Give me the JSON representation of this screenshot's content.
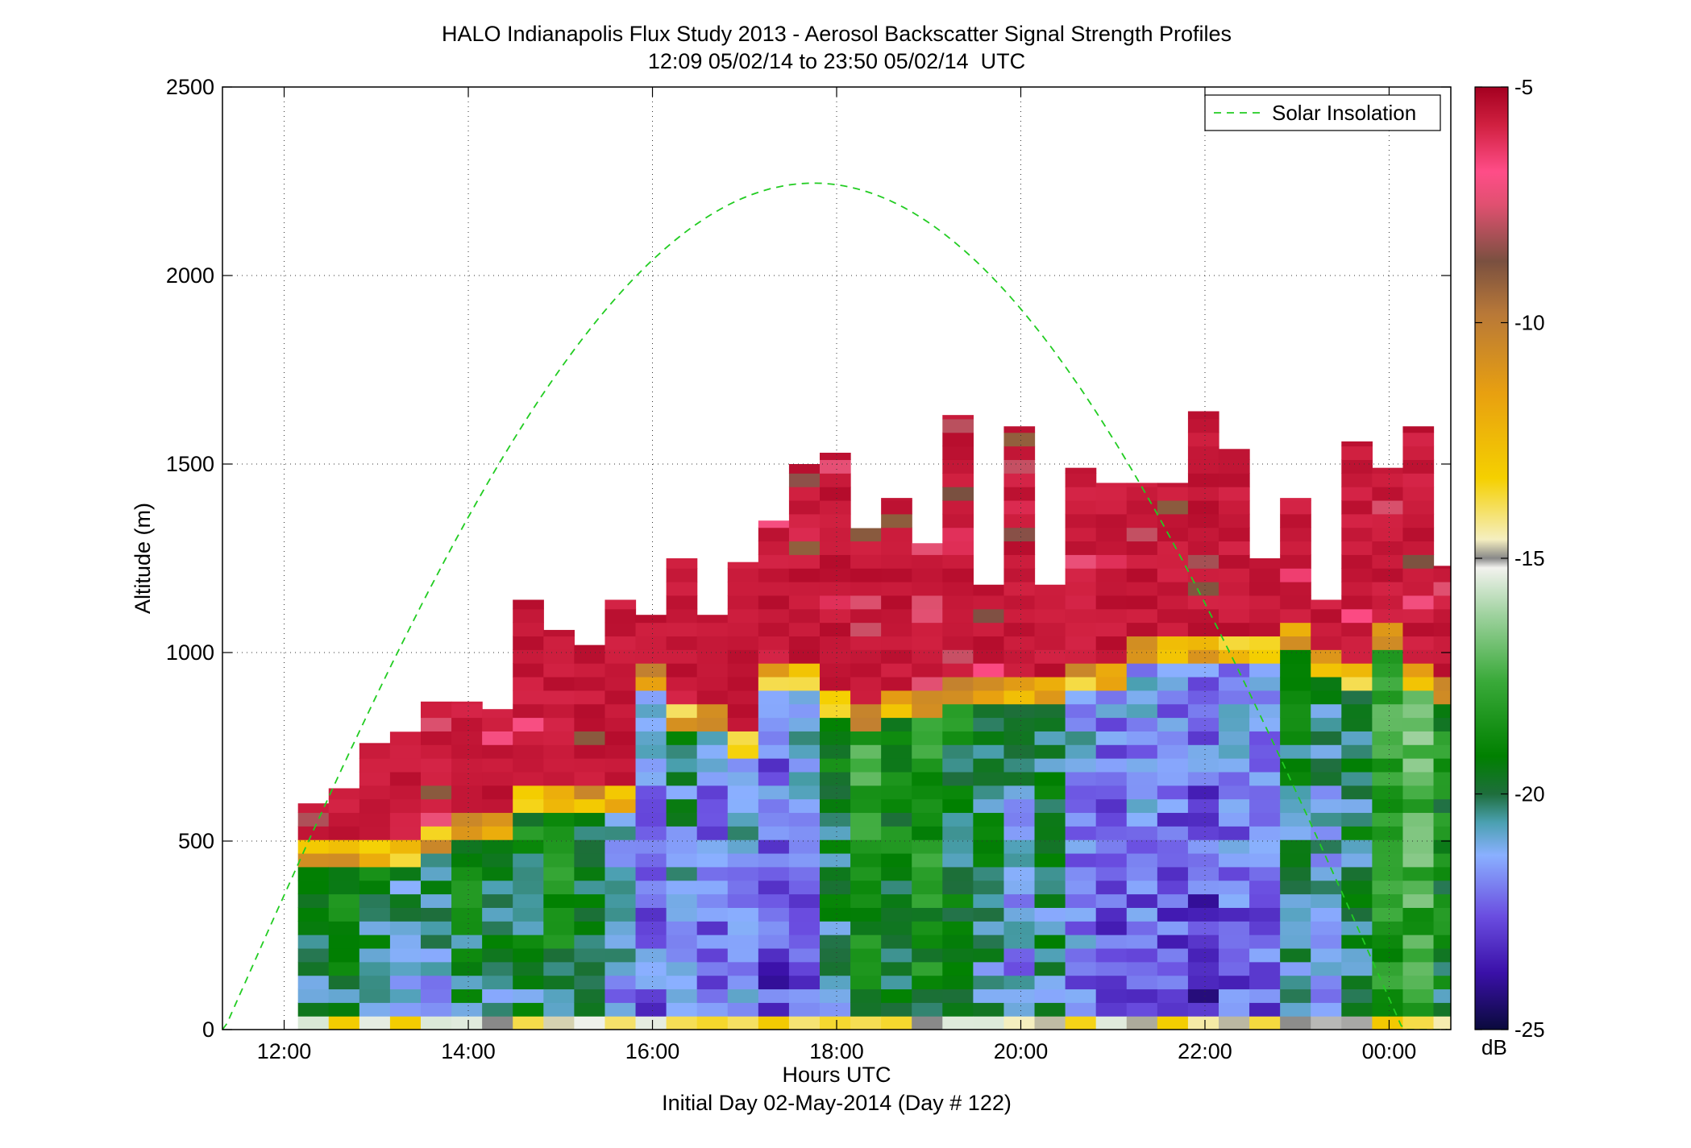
{
  "chart_data": {
    "type": "heatmap",
    "title": "HALO Indianapolis Flux Study 2013 - Aerosol Backscatter Signal Strength Profiles",
    "subtitle": "12:09 05/02/14 to 23:50 05/02/14  UTC",
    "xlabel": "Hours UTC",
    "xlabel2": "Initial Day 02-May-2014 (Day # 122)",
    "ylabel": "Altitude (m)",
    "colorbar_label": "dB",
    "xlim_hours": [
      11.33,
      24.67
    ],
    "ylim": [
      0,
      2500
    ],
    "xticks": [
      {
        "value": 12,
        "label": "12:00"
      },
      {
        "value": 14,
        "label": "14:00"
      },
      {
        "value": 16,
        "label": "16:00"
      },
      {
        "value": 18,
        "label": "18:00"
      },
      {
        "value": 20,
        "label": "20:00"
      },
      {
        "value": 22,
        "label": "22:00"
      },
      {
        "value": 24,
        "label": "00:00"
      }
    ],
    "yticks": [
      {
        "value": 0,
        "label": "0"
      },
      {
        "value": 500,
        "label": "500"
      },
      {
        "value": 1000,
        "label": "1000"
      },
      {
        "value": 1500,
        "label": "1500"
      },
      {
        "value": 2000,
        "label": "2000"
      },
      {
        "value": 2500,
        "label": "2500"
      }
    ],
    "colorbar": {
      "range": [
        -25,
        -5
      ],
      "ticks": [
        {
          "value": -5,
          "label": "-5"
        },
        {
          "value": -10,
          "label": "-10"
        },
        {
          "value": -15,
          "label": "-15"
        },
        {
          "value": -20,
          "label": "-20"
        },
        {
          "value": -25,
          "label": "-25"
        }
      ],
      "stops": [
        {
          "v": -25,
          "c": "#0a0a3c"
        },
        {
          "v": -23.8,
          "c": "#3a10a8"
        },
        {
          "v": -22.6,
          "c": "#6a4de0"
        },
        {
          "v": -21.3,
          "c": "#8ab0ff"
        },
        {
          "v": -20.6,
          "c": "#4aa0b0"
        },
        {
          "v": -20.0,
          "c": "#1e6e3c"
        },
        {
          "v": -19.2,
          "c": "#008000"
        },
        {
          "v": -17.6,
          "c": "#3aaa3a"
        },
        {
          "v": -16.2,
          "c": "#9fd29f"
        },
        {
          "v": -15.2,
          "c": "#f2f2ee"
        },
        {
          "v": -15.0,
          "c": "#888888"
        },
        {
          "v": -14.6,
          "c": "#f5efc0"
        },
        {
          "v": -13.3,
          "c": "#f5d000"
        },
        {
          "v": -11.5,
          "c": "#e8a010"
        },
        {
          "v": -9.8,
          "c": "#b87838"
        },
        {
          "v": -8.7,
          "c": "#7a5040"
        },
        {
          "v": -7.5,
          "c": "#e05070"
        },
        {
          "v": -6.8,
          "c": "#ff4d88"
        },
        {
          "v": -5.8,
          "c": "#d02040"
        },
        {
          "v": -5,
          "c": "#a40020"
        }
      ]
    },
    "series": [
      {
        "name": "Solar Insolation",
        "style": "dashed",
        "color": "#22cc22",
        "note_scale": "plotted against altitude axis",
        "peak_time_hours": 17.75,
        "peak_altitude": 2245,
        "half_width_hours": 6.4
      }
    ],
    "heatmap": {
      "time_start_hours": 12.15,
      "time_bin_hours": 0.3333,
      "altitude_bin_m": 36,
      "altitude_start_m": 36,
      "columns_dB_profile": [
        {
          "top": 600,
          "bl_top": 420,
          "bl": -19.5
        },
        {
          "top": 640,
          "bl_top": 420,
          "bl": -19.0
        },
        {
          "top": 760,
          "bl_top": 420,
          "bl": -19.5
        },
        {
          "top": 790,
          "bl_top": 420,
          "bl": -20.2
        },
        {
          "top": 870,
          "bl_top": 460,
          "bl": -20.0
        },
        {
          "top": 870,
          "bl_top": 480,
          "bl": -19.0
        },
        {
          "top": 850,
          "bl_top": 500,
          "bl": -19.5
        },
        {
          "top": 1140,
          "bl_top": 560,
          "bl": -19.0
        },
        {
          "top": 1060,
          "bl_top": 560,
          "bl": -18.5
        },
        {
          "top": 1020,
          "bl_top": 560,
          "bl": -19.5
        },
        {
          "top": 1140,
          "bl_top": 560,
          "bl": -20.5
        },
        {
          "top": 1100,
          "bl_top": 880,
          "bl": -21.2
        },
        {
          "top": 1250,
          "bl_top": 780,
          "bl": -20.0
        },
        {
          "top": 1100,
          "bl_top": 760,
          "bl": -21.5
        },
        {
          "top": 1240,
          "bl_top": 700,
          "bl": -20.8
        },
        {
          "top": 1350,
          "bl_top": 880,
          "bl": -21.8
        },
        {
          "top": 1500,
          "bl_top": 880,
          "bl": -21.3
        },
        {
          "top": 1530,
          "bl_top": 800,
          "bl": -19.5
        },
        {
          "top": 1330,
          "bl_top": 760,
          "bl": -18.0
        },
        {
          "top": 1410,
          "bl_top": 800,
          "bl": -18.5
        },
        {
          "top": 1290,
          "bl_top": 800,
          "bl": -18.0
        },
        {
          "top": 1630,
          "bl_top": 850,
          "bl": -19.0
        },
        {
          "top": 1180,
          "bl_top": 850,
          "bl": -19.5
        },
        {
          "top": 1600,
          "bl_top": 850,
          "bl": -20.5
        },
        {
          "top": 1180,
          "bl_top": 850,
          "bl": -19.5
        },
        {
          "top": 1490,
          "bl_top": 880,
          "bl": -21.0
        },
        {
          "top": 1450,
          "bl_top": 900,
          "bl": -21.8
        },
        {
          "top": 1450,
          "bl_top": 950,
          "bl": -21.5
        },
        {
          "top": 1450,
          "bl_top": 950,
          "bl": -21.8
        },
        {
          "top": 1640,
          "bl_top": 960,
          "bl": -22.0
        },
        {
          "top": 1540,
          "bl_top": 960,
          "bl": -21.5
        },
        {
          "top": 1250,
          "bl_top": 960,
          "bl": -21.2
        },
        {
          "top": 1410,
          "bl_top": 980,
          "bl": -19.5
        },
        {
          "top": 1140,
          "bl_top": 920,
          "bl": -20.2
        },
        {
          "top": 1560,
          "bl_top": 900,
          "bl": -19.5
        },
        {
          "top": 1490,
          "bl_top": 1000,
          "bl": -17.5
        },
        {
          "top": 1600,
          "bl_top": 900,
          "bl": -17.0
        },
        {
          "top": 1230,
          "bl_top": 860,
          "bl": -18.5
        }
      ]
    }
  }
}
